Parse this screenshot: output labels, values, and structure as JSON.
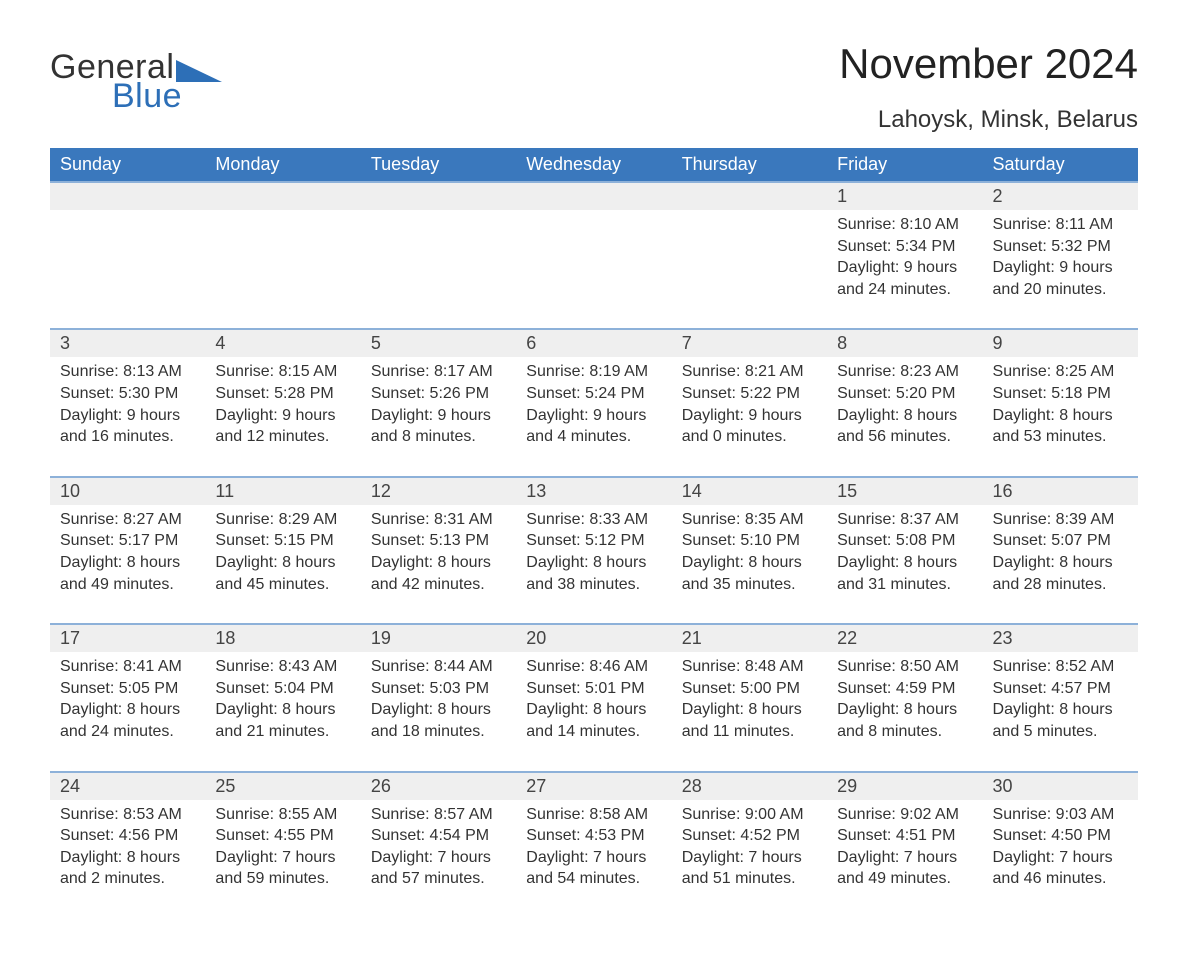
{
  "brand": {
    "word1": "General",
    "word2": "Blue",
    "text_color_dark": "#333333",
    "text_color_accent": "#2d6fb7",
    "triangle_color": "#2d6fb7"
  },
  "header": {
    "title": "November 2024",
    "location": "Lahoysk, Minsk, Belarus",
    "title_color": "#222222",
    "subtitle_color": "#333333",
    "title_fontsize": 42,
    "subtitle_fontsize": 24
  },
  "calendar": {
    "day_headers": [
      "Sunday",
      "Monday",
      "Tuesday",
      "Wednesday",
      "Thursday",
      "Friday",
      "Saturday"
    ],
    "header_bg": "#3a78bd",
    "header_fg": "#ffffff",
    "daynum_bg": "#efefef",
    "daynum_border_top": "#8db1d9",
    "text_color": "#333333",
    "weeks": [
      [
        null,
        null,
        null,
        null,
        null,
        {
          "day": "1",
          "sunrise": "Sunrise: 8:10 AM",
          "sunset": "Sunset: 5:34 PM",
          "daylight1": "Daylight: 9 hours",
          "daylight2": "and 24 minutes."
        },
        {
          "day": "2",
          "sunrise": "Sunrise: 8:11 AM",
          "sunset": "Sunset: 5:32 PM",
          "daylight1": "Daylight: 9 hours",
          "daylight2": "and 20 minutes."
        }
      ],
      [
        {
          "day": "3",
          "sunrise": "Sunrise: 8:13 AM",
          "sunset": "Sunset: 5:30 PM",
          "daylight1": "Daylight: 9 hours",
          "daylight2": "and 16 minutes."
        },
        {
          "day": "4",
          "sunrise": "Sunrise: 8:15 AM",
          "sunset": "Sunset: 5:28 PM",
          "daylight1": "Daylight: 9 hours",
          "daylight2": "and 12 minutes."
        },
        {
          "day": "5",
          "sunrise": "Sunrise: 8:17 AM",
          "sunset": "Sunset: 5:26 PM",
          "daylight1": "Daylight: 9 hours",
          "daylight2": "and 8 minutes."
        },
        {
          "day": "6",
          "sunrise": "Sunrise: 8:19 AM",
          "sunset": "Sunset: 5:24 PM",
          "daylight1": "Daylight: 9 hours",
          "daylight2": "and 4 minutes."
        },
        {
          "day": "7",
          "sunrise": "Sunrise: 8:21 AM",
          "sunset": "Sunset: 5:22 PM",
          "daylight1": "Daylight: 9 hours",
          "daylight2": "and 0 minutes."
        },
        {
          "day": "8",
          "sunrise": "Sunrise: 8:23 AM",
          "sunset": "Sunset: 5:20 PM",
          "daylight1": "Daylight: 8 hours",
          "daylight2": "and 56 minutes."
        },
        {
          "day": "9",
          "sunrise": "Sunrise: 8:25 AM",
          "sunset": "Sunset: 5:18 PM",
          "daylight1": "Daylight: 8 hours",
          "daylight2": "and 53 minutes."
        }
      ],
      [
        {
          "day": "10",
          "sunrise": "Sunrise: 8:27 AM",
          "sunset": "Sunset: 5:17 PM",
          "daylight1": "Daylight: 8 hours",
          "daylight2": "and 49 minutes."
        },
        {
          "day": "11",
          "sunrise": "Sunrise: 8:29 AM",
          "sunset": "Sunset: 5:15 PM",
          "daylight1": "Daylight: 8 hours",
          "daylight2": "and 45 minutes."
        },
        {
          "day": "12",
          "sunrise": "Sunrise: 8:31 AM",
          "sunset": "Sunset: 5:13 PM",
          "daylight1": "Daylight: 8 hours",
          "daylight2": "and 42 minutes."
        },
        {
          "day": "13",
          "sunrise": "Sunrise: 8:33 AM",
          "sunset": "Sunset: 5:12 PM",
          "daylight1": "Daylight: 8 hours",
          "daylight2": "and 38 minutes."
        },
        {
          "day": "14",
          "sunrise": "Sunrise: 8:35 AM",
          "sunset": "Sunset: 5:10 PM",
          "daylight1": "Daylight: 8 hours",
          "daylight2": "and 35 minutes."
        },
        {
          "day": "15",
          "sunrise": "Sunrise: 8:37 AM",
          "sunset": "Sunset: 5:08 PM",
          "daylight1": "Daylight: 8 hours",
          "daylight2": "and 31 minutes."
        },
        {
          "day": "16",
          "sunrise": "Sunrise: 8:39 AM",
          "sunset": "Sunset: 5:07 PM",
          "daylight1": "Daylight: 8 hours",
          "daylight2": "and 28 minutes."
        }
      ],
      [
        {
          "day": "17",
          "sunrise": "Sunrise: 8:41 AM",
          "sunset": "Sunset: 5:05 PM",
          "daylight1": "Daylight: 8 hours",
          "daylight2": "and 24 minutes."
        },
        {
          "day": "18",
          "sunrise": "Sunrise: 8:43 AM",
          "sunset": "Sunset: 5:04 PM",
          "daylight1": "Daylight: 8 hours",
          "daylight2": "and 21 minutes."
        },
        {
          "day": "19",
          "sunrise": "Sunrise: 8:44 AM",
          "sunset": "Sunset: 5:03 PM",
          "daylight1": "Daylight: 8 hours",
          "daylight2": "and 18 minutes."
        },
        {
          "day": "20",
          "sunrise": "Sunrise: 8:46 AM",
          "sunset": "Sunset: 5:01 PM",
          "daylight1": "Daylight: 8 hours",
          "daylight2": "and 14 minutes."
        },
        {
          "day": "21",
          "sunrise": "Sunrise: 8:48 AM",
          "sunset": "Sunset: 5:00 PM",
          "daylight1": "Daylight: 8 hours",
          "daylight2": "and 11 minutes."
        },
        {
          "day": "22",
          "sunrise": "Sunrise: 8:50 AM",
          "sunset": "Sunset: 4:59 PM",
          "daylight1": "Daylight: 8 hours",
          "daylight2": "and 8 minutes."
        },
        {
          "day": "23",
          "sunrise": "Sunrise: 8:52 AM",
          "sunset": "Sunset: 4:57 PM",
          "daylight1": "Daylight: 8 hours",
          "daylight2": "and 5 minutes."
        }
      ],
      [
        {
          "day": "24",
          "sunrise": "Sunrise: 8:53 AM",
          "sunset": "Sunset: 4:56 PM",
          "daylight1": "Daylight: 8 hours",
          "daylight2": "and 2 minutes."
        },
        {
          "day": "25",
          "sunrise": "Sunrise: 8:55 AM",
          "sunset": "Sunset: 4:55 PM",
          "daylight1": "Daylight: 7 hours",
          "daylight2": "and 59 minutes."
        },
        {
          "day": "26",
          "sunrise": "Sunrise: 8:57 AM",
          "sunset": "Sunset: 4:54 PM",
          "daylight1": "Daylight: 7 hours",
          "daylight2": "and 57 minutes."
        },
        {
          "day": "27",
          "sunrise": "Sunrise: 8:58 AM",
          "sunset": "Sunset: 4:53 PM",
          "daylight1": "Daylight: 7 hours",
          "daylight2": "and 54 minutes."
        },
        {
          "day": "28",
          "sunrise": "Sunrise: 9:00 AM",
          "sunset": "Sunset: 4:52 PM",
          "daylight1": "Daylight: 7 hours",
          "daylight2": "and 51 minutes."
        },
        {
          "day": "29",
          "sunrise": "Sunrise: 9:02 AM",
          "sunset": "Sunset: 4:51 PM",
          "daylight1": "Daylight: 7 hours",
          "daylight2": "and 49 minutes."
        },
        {
          "day": "30",
          "sunrise": "Sunrise: 9:03 AM",
          "sunset": "Sunset: 4:50 PM",
          "daylight1": "Daylight: 7 hours",
          "daylight2": "and 46 minutes."
        }
      ]
    ]
  }
}
